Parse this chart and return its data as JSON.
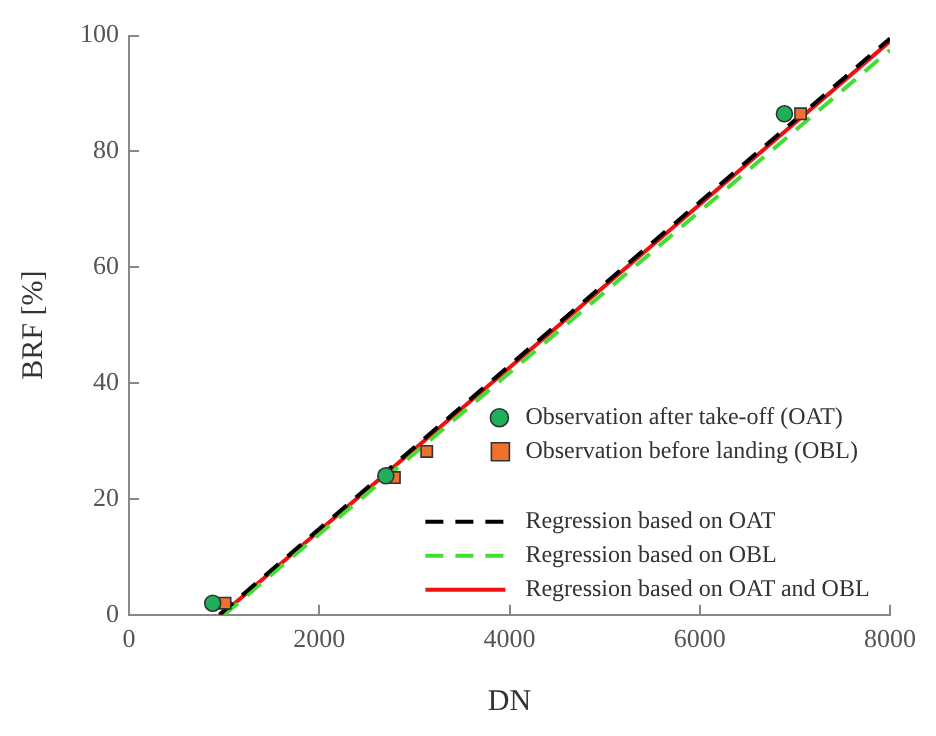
{
  "chart_data": {
    "type": "scatter",
    "xlabel": "DN",
    "ylabel": "BRF [%]",
    "xlim": [
      0,
      8000
    ],
    "ylim": [
      0,
      100
    ],
    "xticks": [
      0,
      2000,
      4000,
      6000,
      8000
    ],
    "yticks": [
      0,
      20,
      40,
      60,
      80,
      100
    ],
    "grid": false,
    "legend": "bottom right",
    "series": [
      {
        "name": "Observation after take-off (OAT)",
        "type": "scatter",
        "marker": "circle",
        "color": "#1fae5a",
        "x": [
          880,
          2700,
          6890
        ],
        "values": [
          2,
          24,
          86.5
        ]
      },
      {
        "name": "Observation before landing (OBL)",
        "type": "scatter",
        "marker": "square",
        "color": "#f07030",
        "x": [
          1010,
          2790,
          3130,
          7060
        ],
        "values": [
          2,
          23.7,
          28.2,
          86.5
        ]
      },
      {
        "name": "Regression based on OAT",
        "type": "line",
        "line_style": "dashed",
        "marker": "none",
        "color": "#000000",
        "x": [
          950,
          8000
        ],
        "values": [
          0,
          99.5
        ]
      },
      {
        "name": "Regression based on OBL",
        "type": "line",
        "line_style": "dashed",
        "marker": "none",
        "color": "#44dd33",
        "x": [
          1000,
          8000
        ],
        "values": [
          0,
          97.5
        ]
      },
      {
        "name": "Regression based on OAT and OBL",
        "type": "line",
        "line_style": "solid",
        "marker": "none",
        "color": "#ee1111",
        "x": [
          970,
          8000
        ],
        "values": [
          0,
          99
        ]
      }
    ]
  }
}
